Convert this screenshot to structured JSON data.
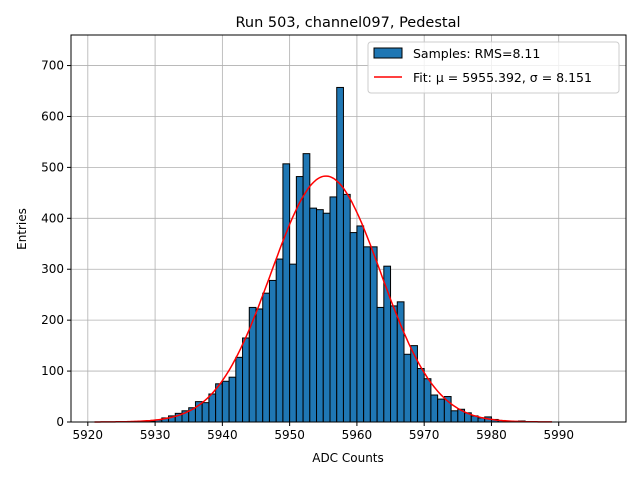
{
  "chart_data": {
    "type": "bar",
    "title": "Run 503, channel097, Pedestal",
    "xlabel": "ADC Counts",
    "ylabel": "Entries",
    "xlim": [
      5917.5,
      6000
    ],
    "ylim": [
      0,
      760
    ],
    "xticks": [
      5920,
      5930,
      5940,
      5950,
      5960,
      5970,
      5980,
      5990
    ],
    "yticks": [
      0,
      100,
      200,
      300,
      400,
      500,
      600,
      700
    ],
    "grid": true,
    "legend_position": "top-right",
    "bin_width": 1,
    "histogram": {
      "name": "Samples: RMS=8.11",
      "color": "#1f77b4",
      "bin_starts": [
        5929,
        5930,
        5931,
        5932,
        5933,
        5934,
        5935,
        5936,
        5937,
        5938,
        5939,
        5940,
        5941,
        5942,
        5943,
        5944,
        5945,
        5946,
        5947,
        5948,
        5949,
        5950,
        5951,
        5952,
        5953,
        5954,
        5955,
        5956,
        5957,
        5958,
        5959,
        5960,
        5961,
        5962,
        5963,
        5964,
        5965,
        5966,
        5967,
        5968,
        5969,
        5970,
        5971,
        5972,
        5973,
        5974,
        5975,
        5976,
        5977,
        5978,
        5979,
        5980,
        5981,
        5982,
        5983,
        5984
      ],
      "values": [
        2,
        4,
        8,
        12,
        17,
        22,
        28,
        40,
        38,
        55,
        75,
        80,
        88,
        127,
        165,
        225,
        222,
        253,
        278,
        320,
        507,
        310,
        482,
        527,
        420,
        417,
        410,
        442,
        657,
        447,
        372,
        385,
        344,
        344,
        225,
        306,
        228,
        236,
        133,
        150,
        105,
        85,
        53,
        45,
        50,
        22,
        25,
        18,
        12,
        8,
        10,
        5,
        3,
        2,
        1,
        2
      ]
    },
    "fit": {
      "name": "Fit: μ = 5955.392, σ = 8.151",
      "color": "#ff0000",
      "mu": 5955.392,
      "sigma": 8.151,
      "amplitude": 483,
      "x_range": [
        5921,
        5989
      ]
    }
  }
}
